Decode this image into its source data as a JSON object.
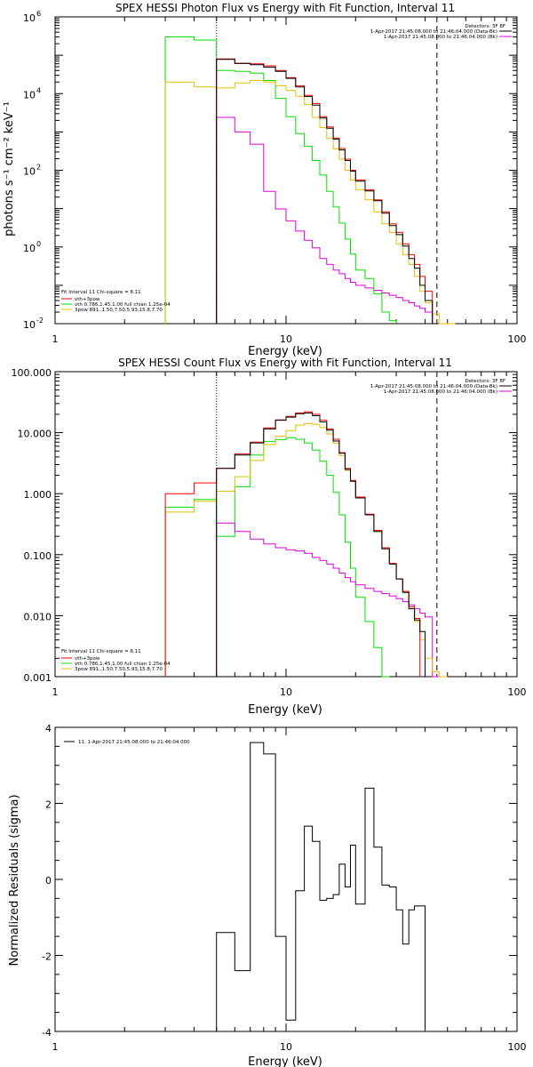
{
  "colors": {
    "total": "#000000",
    "vth_plus_3pow": "#ff0000",
    "vth": "#00e000",
    "3pow": "#e0c000",
    "background": "#e000e0",
    "grid": "#000000"
  },
  "chart_data": [
    {
      "id": "photon",
      "type": "line",
      "title": "SPEX HESSI Photon Flux vs Energy with Fit Function, Interval 11",
      "xlabel": "Energy (keV)",
      "ylabel": "photons s⁻¹ cm⁻² keV⁻¹",
      "xscale": "log",
      "yscale": "log",
      "xlim": [
        1,
        100
      ],
      "ylim": [
        0.01,
        1000000
      ],
      "xticks": [
        {
          "v": 1,
          "label": "1"
        },
        {
          "v": 10,
          "label": "10"
        },
        {
          "v": 100,
          "label": "100"
        }
      ],
      "yticks": [
        {
          "v": 0.01,
          "base": "10",
          "exp": "-2"
        },
        {
          "v": 1,
          "base": "10",
          "exp": "0"
        },
        {
          "v": 100,
          "base": "10",
          "exp": "2"
        },
        {
          "v": 10000,
          "base": "10",
          "exp": "4"
        },
        {
          "v": 1000000,
          "base": "10",
          "exp": "6"
        }
      ],
      "fit_range_keV": [
        5,
        45
      ],
      "legend_tr": {
        "header": "Detectors: 3F 8F",
        "lines": [
          {
            "label": "1-Apr-2017 21:45:08.000 to 21:46:04.000 (Data-Bk)",
            "color": "#000000"
          },
          {
            "label": "1-Apr-2017 21:45:08.000 to 21:46:04.000 (Bk)",
            "color": "#e000e0"
          }
        ]
      },
      "legend_bl": {
        "header": "Fit Interval 11   Chi-square = 8.11",
        "lines": [
          {
            "label": "vth+3pow",
            "color": "#ff0000"
          },
          {
            "label": "vth 0.786,1.45,1.00  full chian 1.25e-04",
            "color": "#00e000"
          },
          {
            "label": "3pow 891.,1.50,7.50,5.93,15.8,7.70",
            "color": "#e0c000"
          }
        ]
      },
      "edges_keV": [
        3,
        4,
        5,
        6,
        7,
        8,
        9,
        10,
        11,
        12,
        13,
        14,
        15,
        16,
        17,
        18,
        19,
        20,
        22,
        24,
        26,
        28,
        30,
        32,
        34,
        36,
        38,
        40,
        43,
        46,
        50,
        54,
        59
      ],
      "series": [
        {
          "key": "background",
          "start": 2,
          "values": [
            2400,
            1000,
            480,
            28,
            9.8,
            4.8,
            2.6,
            1.5,
            0.95,
            0.5,
            0.35,
            0.25,
            0.2,
            0.15,
            0.12,
            0.1,
            0.085,
            0.074,
            0.063,
            0.055,
            0.048,
            0.04,
            0.035,
            0.029,
            0.025,
            0.02
          ]
        },
        {
          "key": "vth",
          "start": 0,
          "values": [
            300000,
            250000,
            40000,
            38000,
            34000,
            22000,
            7500,
            2500,
            900,
            420,
            180,
            75,
            28,
            11,
            4.2,
            1.6,
            0.65,
            0.25,
            0.15,
            0.06,
            0.02,
            0.012
          ]
        },
        {
          "key": "3pow",
          "start": 0,
          "values": [
            20000,
            15000,
            14000,
            19000,
            22000,
            20000,
            16000,
            12000,
            8500,
            5200,
            2400,
            1300,
            680,
            360,
            195,
            100,
            56,
            31,
            17,
            8.2,
            4,
            2.4,
            1.2,
            0.63,
            0.35,
            0.17,
            0.07,
            0.035,
            0.018,
            0.01,
            0.006
          ]
        },
        {
          "key": "vth_plus_3pow",
          "start": 2,
          "values": [
            80000,
            62000,
            60000,
            53000,
            40000,
            26000,
            16000,
            9000,
            5500,
            2500,
            1350,
            690,
            370,
            195,
            100,
            56,
            31,
            17,
            8.2,
            4,
            2.4,
            1.2,
            0.63,
            0.35,
            0.17,
            0.07
          ]
        },
        {
          "key": "total",
          "start": 2,
          "values": [
            78000,
            61000,
            57000,
            49000,
            38000,
            25000,
            15000,
            8400,
            5000,
            2300,
            1250,
            650,
            340,
            180,
            95,
            52,
            29,
            16,
            7.6,
            3.6,
            2.1,
            1.05,
            0.5,
            0.28,
            0.1,
            0.04
          ]
        }
      ]
    },
    {
      "id": "count",
      "type": "line",
      "title": "SPEX HESSI Count Flux vs Energy with Fit Function, Interval 11",
      "xlabel": "Energy (keV)",
      "ylabel": "",
      "xscale": "log",
      "yscale": "log",
      "xlim": [
        1,
        100
      ],
      "ylim": [
        0.001,
        100
      ],
      "xticks": [
        {
          "v": 1,
          "label": "1"
        },
        {
          "v": 10,
          "label": "10"
        },
        {
          "v": 100,
          "label": "100"
        }
      ],
      "yticks": [
        {
          "v": 0.001,
          "label": "0.001"
        },
        {
          "v": 0.01,
          "label": "0.010"
        },
        {
          "v": 0.1,
          "label": "0.100"
        },
        {
          "v": 1,
          "label": "1.000"
        },
        {
          "v": 10,
          "label": "10.000"
        },
        {
          "v": 100,
          "label": "100.000"
        }
      ],
      "fit_range_keV": [
        5,
        45
      ],
      "legend_tr": {
        "header": "Detectors: 3F 8F",
        "lines": [
          {
            "label": "1-Apr-2017 21:45:08.000 to 21:46:04.000 (Data-Bk)",
            "color": "#000000"
          },
          {
            "label": "1-Apr-2017 21:45:08.000 to 21:46:04.000 (Bk)",
            "color": "#e000e0"
          }
        ]
      },
      "legend_bl": {
        "header": "Fit Interval 11   Chi-square = 8.11",
        "lines": [
          {
            "label": "vth+3pow",
            "color": "#ff0000"
          },
          {
            "label": "vth 0.786,1.45,1.00  full chian 1.25e-04",
            "color": "#00e000"
          },
          {
            "label": "3pow 891.,1.50,7.50,5.93,15.8,7.70",
            "color": "#e0c000"
          }
        ]
      },
      "edges_keV": [
        3,
        4,
        5,
        6,
        7,
        8,
        9,
        10,
        11,
        12,
        13,
        14,
        15,
        16,
        17,
        18,
        19,
        20,
        22,
        24,
        26,
        28,
        30,
        32,
        34,
        36,
        38,
        40,
        43,
        46,
        50,
        54,
        59
      ],
      "series": [
        {
          "key": "vth",
          "start": 0,
          "values": [
            0.6,
            0.8,
            0.2,
            1.3,
            4.3,
            7.2,
            7.7,
            8.3,
            7.8,
            6.8,
            5.2,
            3.4,
            2.0,
            1.05,
            0.45,
            0.16,
            0.06,
            0.02,
            0.008,
            0.003,
            0.001
          ]
        },
        {
          "key": "background",
          "start": 2,
          "values": [
            0.33,
            0.24,
            0.18,
            0.15,
            0.13,
            0.12,
            0.115,
            0.105,
            0.09,
            0.08,
            0.07,
            0.06,
            0.05,
            0.042,
            0.036,
            0.032,
            0.028,
            0.025,
            0.023,
            0.021,
            0.019,
            0.017,
            0.015,
            0.013,
            0.011,
            0.0095,
            0.001
          ]
        },
        {
          "key": "3pow",
          "start": 0,
          "values": [
            0.5,
            0.75,
            1.1,
            1.9,
            3.5,
            6.4,
            8.8,
            10.8,
            13.3,
            14.2,
            13.7,
            12.1,
            9.5,
            6.7,
            4.2,
            2.4,
            1.6,
            0.85,
            0.45,
            0.24,
            0.13,
            0.07,
            0.04,
            0.025,
            0.013,
            0.008,
            0.004,
            0.002,
            0.0012,
            0.001
          ]
        },
        {
          "key": "vth_plus_3pow",
          "start": 0,
          "values": [
            1.0,
            1.5,
            2.6,
            4.5,
            7.0,
            12.0,
            16.2,
            18.5,
            21.0,
            22.0,
            20.0,
            16.0,
            11.5,
            7.8,
            4.7,
            2.6,
            1.65,
            0.88,
            0.46,
            0.25,
            0.13,
            0.072,
            0.04,
            0.025,
            0.014,
            0.009
          ]
        },
        {
          "key": "total",
          "start": 2,
          "values": [
            2.6,
            4.3,
            6.8,
            11.5,
            16.0,
            18.0,
            20.5,
            21.0,
            19.0,
            15.0,
            11.0,
            7.3,
            4.6,
            2.5,
            1.6,
            0.85,
            0.45,
            0.24,
            0.125,
            0.07,
            0.04,
            0.024,
            0.013,
            0.0085,
            0.0055
          ]
        }
      ]
    },
    {
      "id": "residuals",
      "type": "line",
      "title": "",
      "xlabel": "Energy (keV)",
      "ylabel": "Normalized Residuals (sigma)",
      "xscale": "log",
      "yscale": "linear",
      "xlim": [
        1,
        100
      ],
      "ylim": [
        -4,
        4
      ],
      "xticks": [
        {
          "v": 1,
          "label": "1"
        },
        {
          "v": 10,
          "label": "10"
        },
        {
          "v": 100,
          "label": "100"
        }
      ],
      "yticks": [
        {
          "v": -4,
          "label": "-4"
        },
        {
          "v": -2,
          "label": "-2"
        },
        {
          "v": 0,
          "label": "0"
        },
        {
          "v": 2,
          "label": "2"
        },
        {
          "v": 4,
          "label": "4"
        }
      ],
      "legend_tl": {
        "label": "11.  1-Apr-2017 21:45:08.000 to 21:46:04.000",
        "color": "#000000"
      },
      "edges_keV": [
        5,
        6,
        7,
        8,
        9,
        10,
        11,
        12,
        13,
        14,
        15,
        16,
        17,
        18,
        19,
        20,
        22,
        24,
        26,
        28,
        30,
        32,
        34,
        36,
        38,
        40,
        43,
        46
      ],
      "series": [
        {
          "key": "total",
          "start": 0,
          "values": [
            -1.4,
            -2.4,
            3.6,
            3.3,
            -1.5,
            -3.7,
            -0.3,
            1.4,
            1.0,
            -0.55,
            -0.5,
            -0.4,
            0.4,
            -0.2,
            0.9,
            -0.65,
            2.4,
            0.85,
            -0.15,
            -0.2,
            -0.8,
            -1.7,
            -0.8,
            -0.7,
            -0.7
          ]
        }
      ]
    }
  ]
}
